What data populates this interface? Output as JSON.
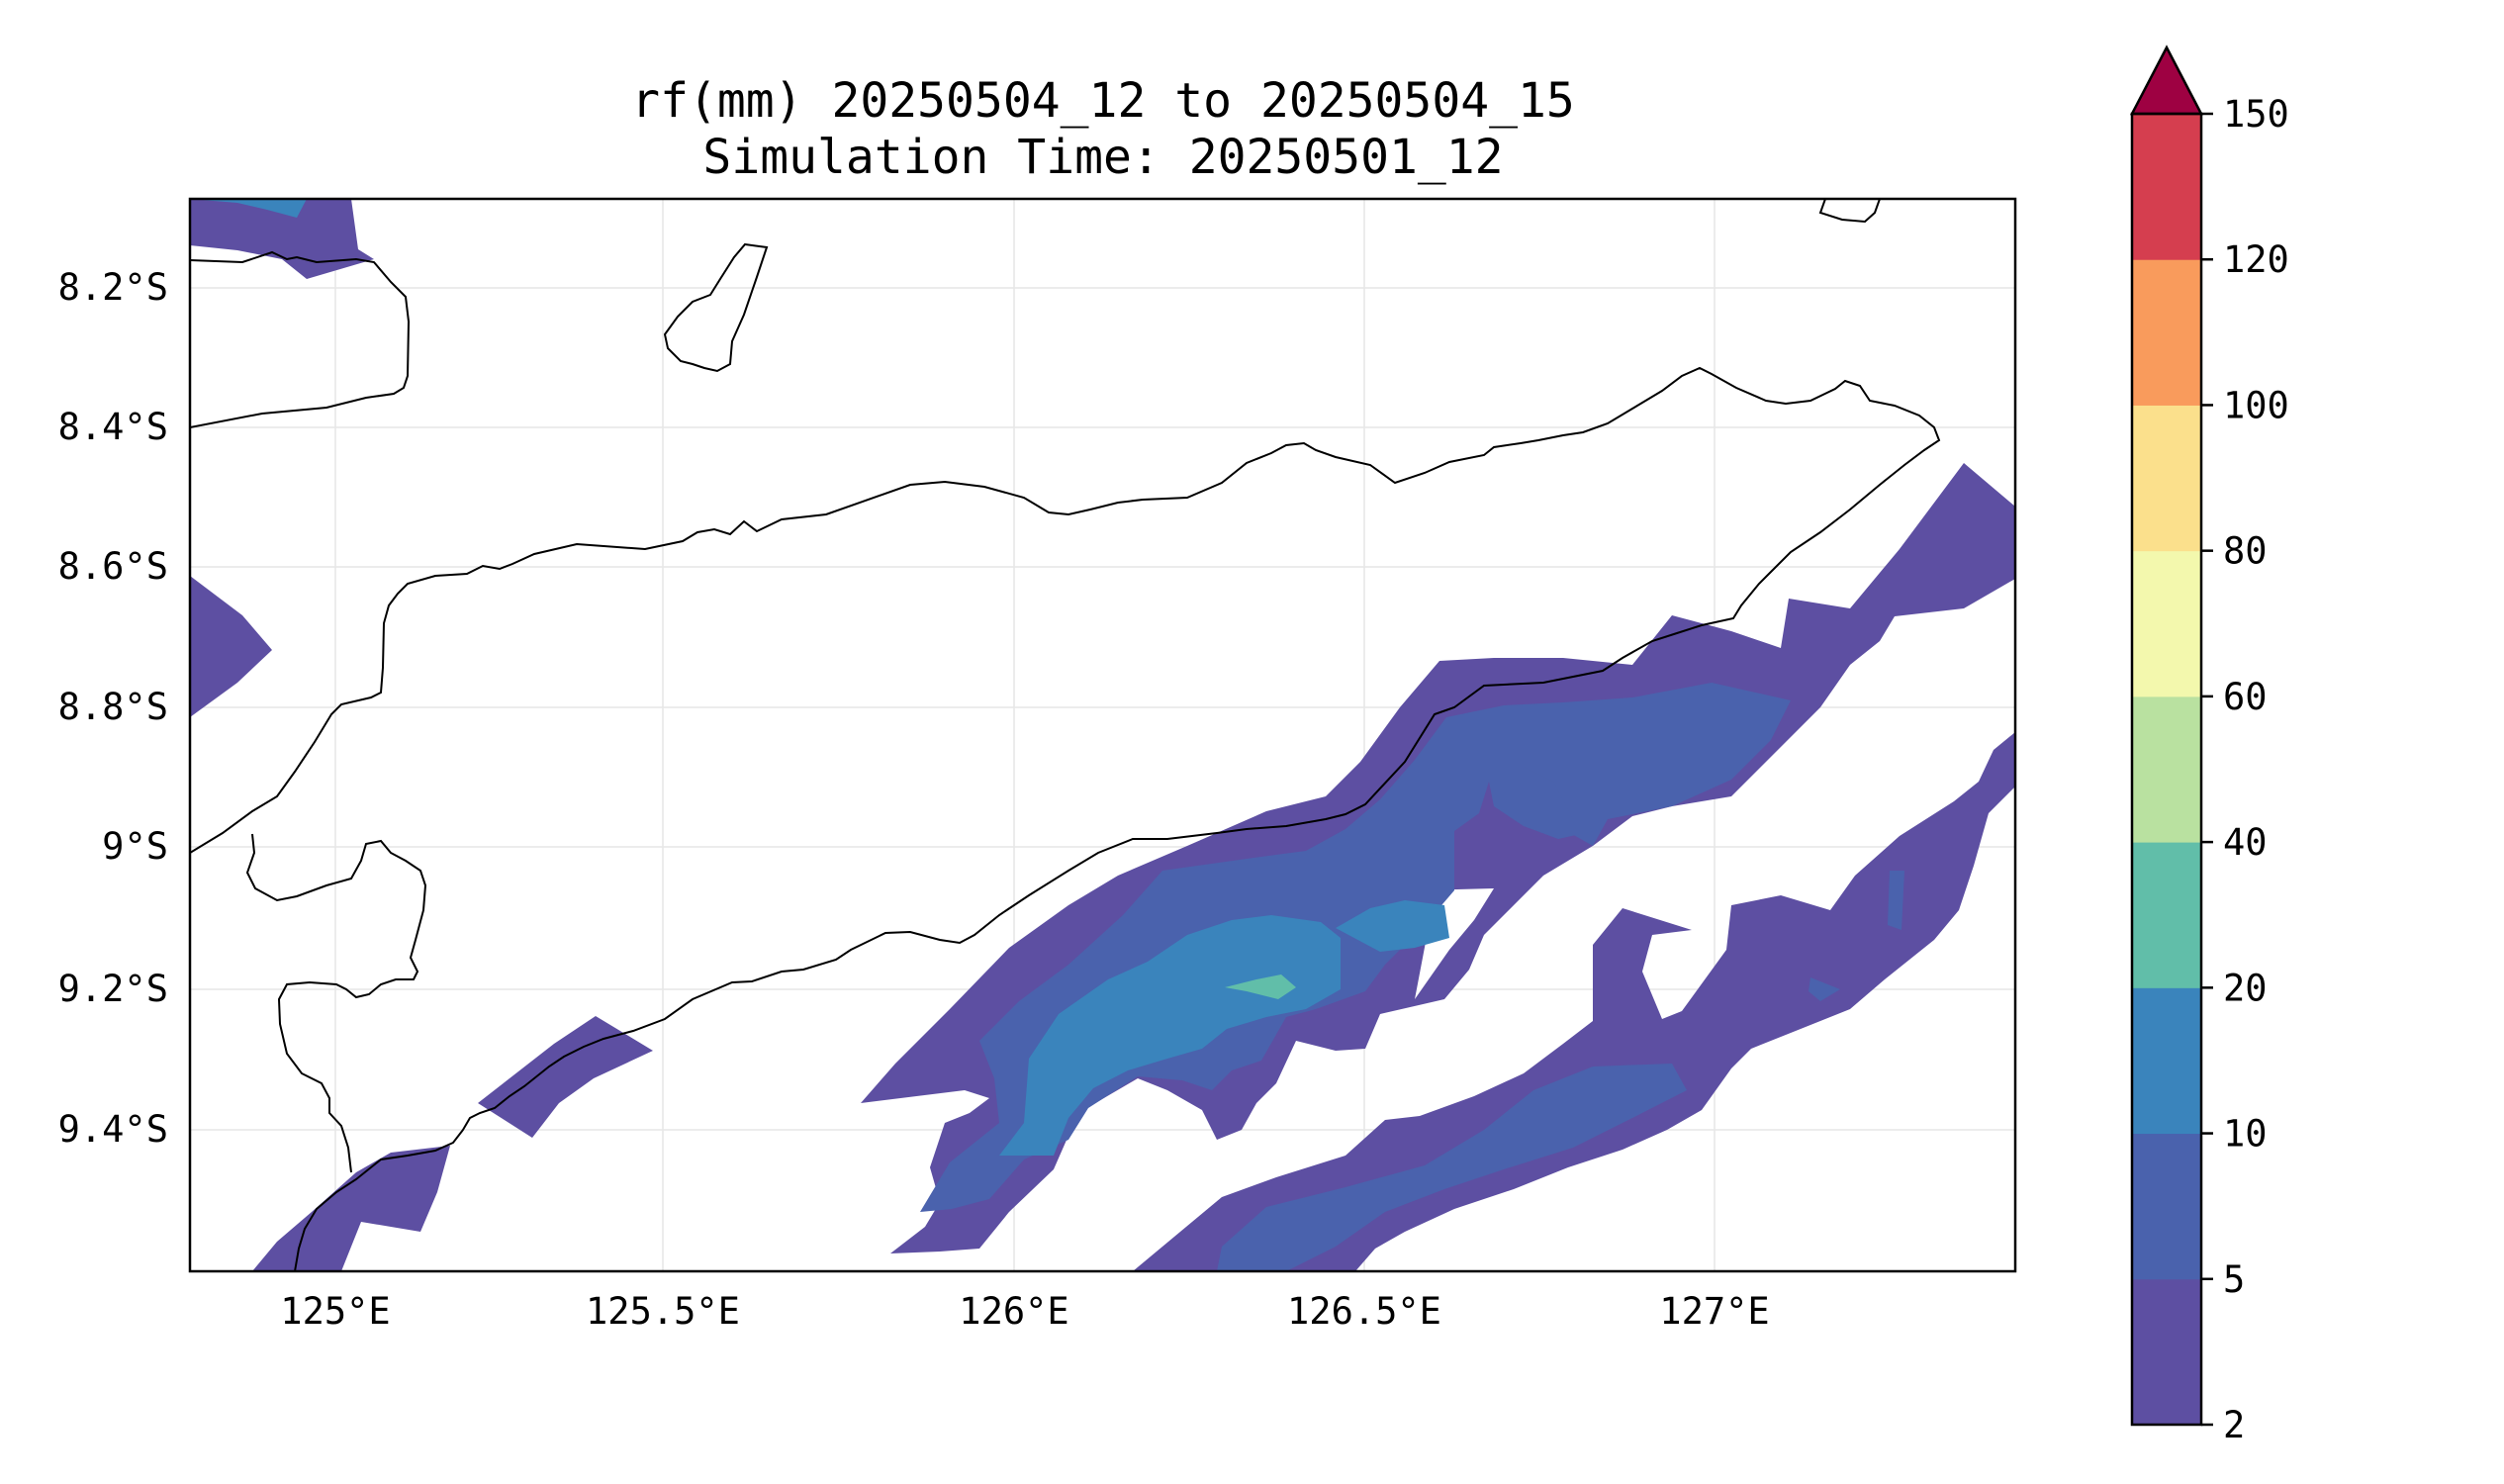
{
  "title": {
    "line1": "rf(mm) 20250504_12 to 20250504_15",
    "line2": "Simulation Time: 20250501_12"
  },
  "map": {
    "x_ticks": [
      "125°E",
      "125.5°E",
      "126°E",
      "126.5°E",
      "127°E"
    ],
    "y_ticks": [
      "8.2°S",
      "8.4°S",
      "8.6°S",
      "8.8°S",
      "9°S",
      "9.2°S",
      "9.4°S"
    ],
    "lon_range": [
      124.82,
      127.42
    ],
    "lat_range": [
      -8.08,
      -9.62
    ],
    "grid": true
  },
  "colorbar": {
    "levels": [
      "2",
      "5",
      "10",
      "20",
      "40",
      "60",
      "80",
      "100",
      "120",
      "150"
    ],
    "colors": [
      "#5d4fa2",
      "#4a62ad",
      "#3a84bc",
      "#61bea9",
      "#b9e1a0",
      "#f3f8ad",
      "#fbe08c",
      "#f99b5c",
      "#d53e4f"
    ],
    "extend_color": "#9e0142",
    "extend": "max"
  }
}
